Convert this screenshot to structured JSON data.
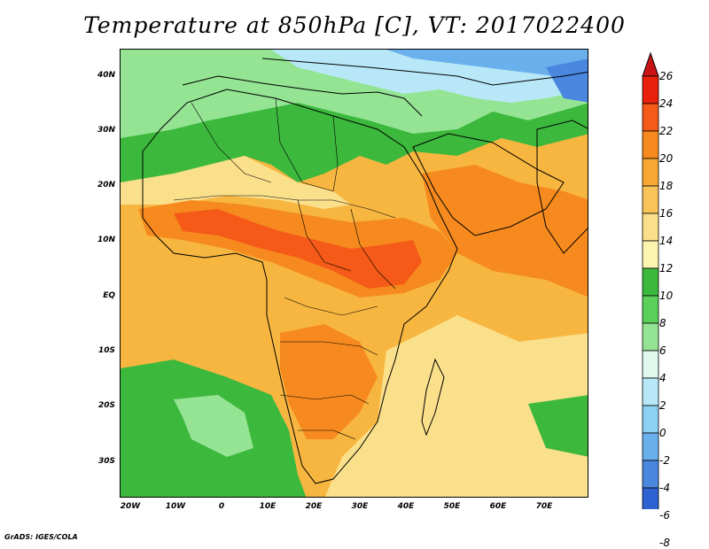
{
  "title": "Temperature at 850hPa [C], VT: 2017022400",
  "credit": "GrADS: IGES/COLA",
  "map": {
    "lat_labels": [
      "40N",
      "30N",
      "20N",
      "10N",
      "EQ",
      "10S",
      "20S",
      "30S"
    ],
    "lon_labels": [
      "20W",
      "10W",
      "0",
      "10E",
      "20E",
      "30E",
      "40E",
      "50E",
      "60E",
      "70E"
    ],
    "background_color": "#f7b640"
  },
  "colorbar": {
    "labels": [
      "26",
      "24",
      "22",
      "20",
      "18",
      "16",
      "14",
      "12",
      "10",
      "8",
      "6",
      "4",
      "2",
      "0",
      "-2",
      "-4",
      "-6",
      "-8"
    ],
    "colors": [
      "#e8200c",
      "#f55a18",
      "#f68a1e",
      "#f7a832",
      "#f8c45a",
      "#fbe08c",
      "#fdf4b0",
      "#3cb83c",
      "#5ad05a",
      "#94e494",
      "#e0f8ee",
      "#b8e8f8",
      "#8cd0f4",
      "#6ab0ec",
      "#4a88e0",
      "#2e62d2",
      "#1a3cb8",
      "#0c1a8c"
    ],
    "top_arrow_color": "#c81414",
    "bottom_arrow_color": "#d2d2f0"
  }
}
